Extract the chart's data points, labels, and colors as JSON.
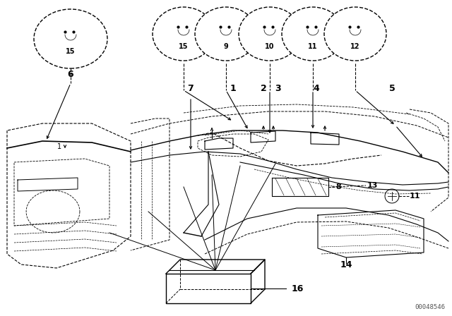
{
  "bg_color": "#ffffff",
  "line_color": "#000000",
  "fig_width": 6.4,
  "fig_height": 4.48,
  "dpi": 100,
  "watermark": "00048546"
}
